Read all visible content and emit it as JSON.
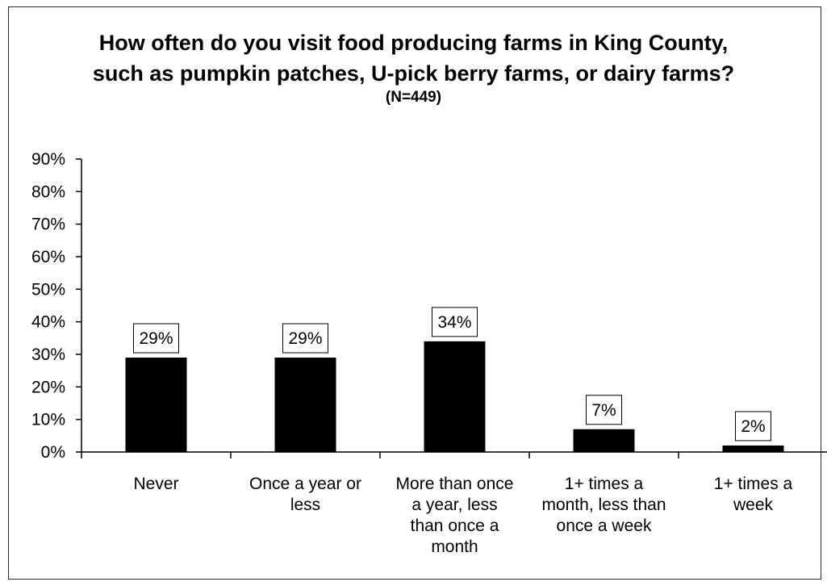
{
  "chart_data": {
    "type": "bar",
    "title": "How often do you visit food producing farms in King County, such as pumpkin patches, U-pick berry farms, or dairy farms?",
    "subtitle": "(N=449)",
    "categories": [
      [
        "Never"
      ],
      [
        "Once a year or",
        "less"
      ],
      [
        "More than once",
        "a year, less",
        "than once a",
        "month"
      ],
      [
        "1+ times a",
        "month, less than",
        "once a week"
      ],
      [
        "1+ times a",
        "week"
      ]
    ],
    "values": [
      0.29,
      0.29,
      0.34,
      0.07,
      0.02
    ],
    "data_labels": [
      "29%",
      "29%",
      "34%",
      "7%",
      "2%"
    ],
    "ylim": [
      0,
      0.9
    ],
    "yticks": [
      0,
      0.1,
      0.2,
      0.3,
      0.4,
      0.5,
      0.6,
      0.7,
      0.8,
      0.9
    ],
    "ytick_labels": [
      "0%",
      "10%",
      "20%",
      "30%",
      "40%",
      "50%",
      "60%",
      "70%",
      "80%",
      "90%"
    ],
    "xlabel": "",
    "ylabel": "",
    "grid": false,
    "legend": "none",
    "bar_color": "#000000"
  }
}
